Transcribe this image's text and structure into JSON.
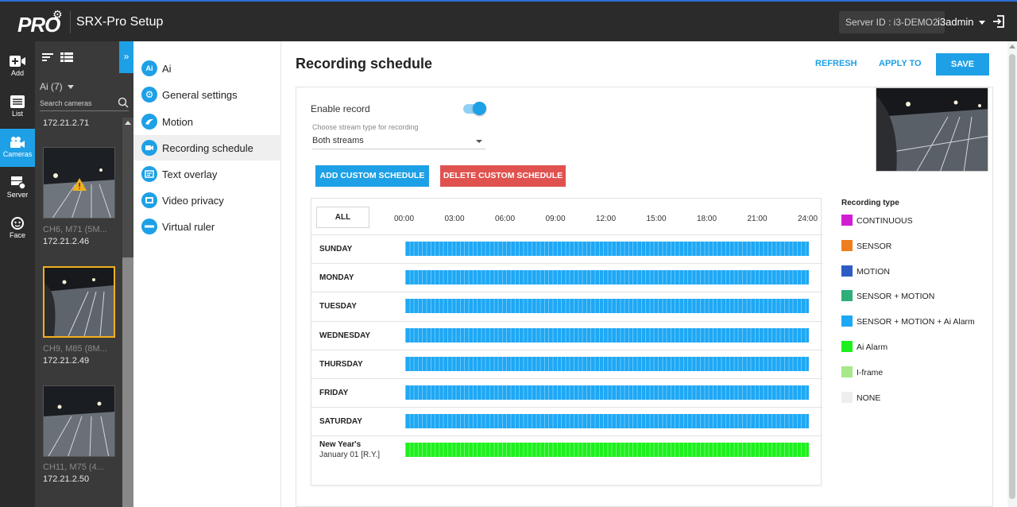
{
  "header": {
    "logo_text": "PRO",
    "app_title": "SRX-Pro Setup",
    "server_id": "Server ID : i3-DEMO2",
    "user": "i3admin"
  },
  "rail": [
    {
      "label": "Add",
      "icon": "add-camera-icon"
    },
    {
      "label": "List",
      "icon": "list-icon"
    },
    {
      "label": "Cameras",
      "icon": "camera-icon"
    },
    {
      "label": "Server",
      "icon": "server-icon"
    },
    {
      "label": "Face",
      "icon": "face-icon"
    }
  ],
  "cameras": {
    "filter": "Ai (7)",
    "search_placeholder": "Search cameras",
    "items": [
      {
        "name": "",
        "ip": "172.21.2.71"
      },
      {
        "name": "CH6, M71 (5M...",
        "ip": "172.21.2.46"
      },
      {
        "name": "CH9, M85 (8M...",
        "ip": "172.21.2.49"
      },
      {
        "name": "CH11, M75 (4...",
        "ip": "172.21.2.50"
      }
    ]
  },
  "menu": {
    "items": [
      {
        "label": "Ai",
        "icon": "ai-icon"
      },
      {
        "label": "General settings",
        "icon": "gear-icon"
      },
      {
        "label": "Motion",
        "icon": "motion-icon"
      },
      {
        "label": "Recording schedule",
        "icon": "record-icon"
      },
      {
        "label": "Text overlay",
        "icon": "text-overlay-icon"
      },
      {
        "label": "Video privacy",
        "icon": "video-privacy-icon"
      },
      {
        "label": "Virtual ruler",
        "icon": "ruler-icon"
      }
    ],
    "active_index": 3
  },
  "main": {
    "title": "Recording schedule",
    "refresh": "REFRESH",
    "apply_to": "APPLY TO",
    "save": "SAVE",
    "enable_record": "Enable record",
    "stream_label": "Choose stream type for recording",
    "stream_value": "Both streams",
    "add_custom": "ADD CUSTOM SCHEDULE",
    "delete_custom": "DELETE CUSTOM SCHEDULE"
  },
  "schedule": {
    "all": "ALL",
    "hours": [
      "00:00",
      "03:00",
      "06:00",
      "09:00",
      "12:00",
      "15:00",
      "18:00",
      "21:00",
      "24:00"
    ],
    "days": [
      {
        "name": "SUNDAY",
        "sub": "",
        "color": "#1ea8f5"
      },
      {
        "name": "MONDAY",
        "sub": "",
        "color": "#1ea8f5"
      },
      {
        "name": "TUESDAY",
        "sub": "",
        "color": "#1ea8f5"
      },
      {
        "name": "WEDNESDAY",
        "sub": "",
        "color": "#1ea8f5"
      },
      {
        "name": "THURSDAY",
        "sub": "",
        "color": "#1ea8f5"
      },
      {
        "name": "FRIDAY",
        "sub": "",
        "color": "#1ea8f5"
      },
      {
        "name": "SATURDAY",
        "sub": "",
        "color": "#1ea8f5"
      },
      {
        "name": "New Year's",
        "sub": "January 01 [R.Y.]",
        "color": "#1ef01e"
      }
    ]
  },
  "legend": {
    "title": "Recording type",
    "items": [
      {
        "label": "CONTINUOUS",
        "color": "#d21ed2"
      },
      {
        "label": "SENSOR",
        "color": "#f07d1e"
      },
      {
        "label": "MOTION",
        "color": "#2e5bc4"
      },
      {
        "label": "SENSOR + MOTION",
        "color": "#2eae78"
      },
      {
        "label": "SENSOR + MOTION + Ai Alarm",
        "color": "#1ea8f5"
      },
      {
        "label": "Ai Alarm",
        "color": "#1ef01e"
      },
      {
        "label": "I-frame",
        "color": "#a6e88a"
      },
      {
        "label": "NONE",
        "color": "#eeeeee"
      }
    ]
  }
}
